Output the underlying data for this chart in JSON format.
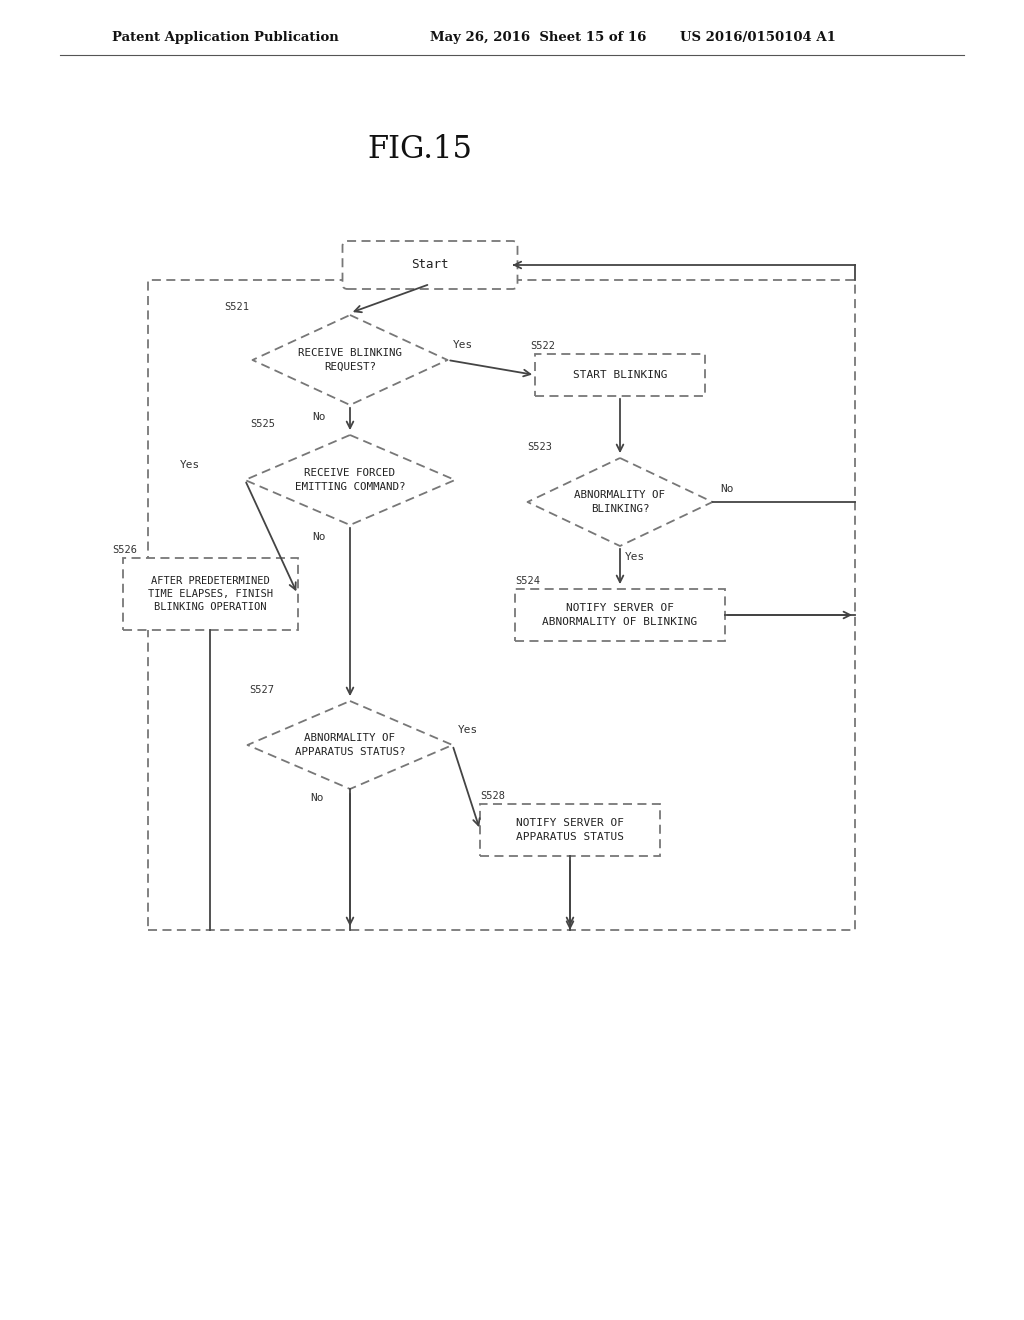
{
  "title": "FIG.15",
  "header_left": "Patent Application Publication",
  "header_center": "May 26, 2016  Sheet 15 of 16",
  "header_right": "US 2016/0150104 A1",
  "background": "#ffffff",
  "fig_width": 10.24,
  "fig_height": 13.2,
  "line_color": "#444444",
  "box_edge_color": "#777777",
  "font_color": "#222222",
  "label_color": "#333333"
}
